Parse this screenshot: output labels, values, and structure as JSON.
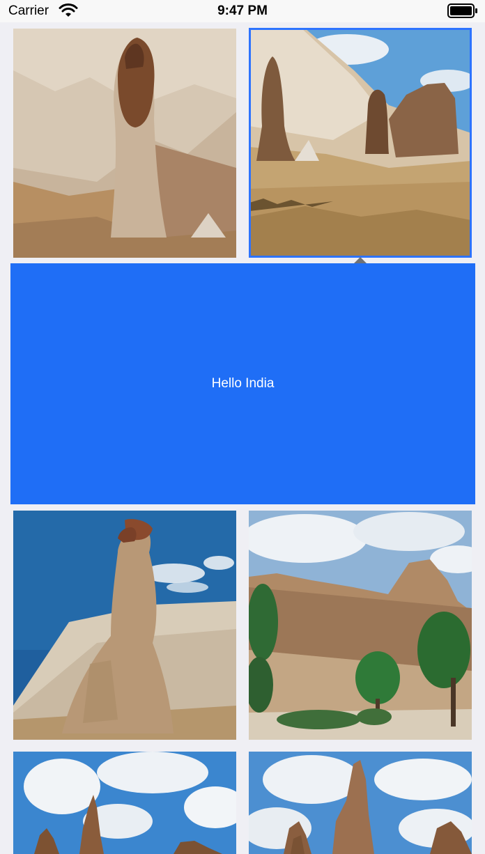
{
  "status_bar": {
    "carrier": "Carrier",
    "time": "9:47 PM",
    "wifi_icon": "wifi-icon",
    "battery_icon": "battery-icon"
  },
  "grid": {
    "selected_index": 1,
    "cells": [
      {
        "subject": "rock-pillar-hillside"
      },
      {
        "subject": "rock-formations-grassland"
      },
      {
        "subject": "fairy-chimney-blue-sky"
      },
      {
        "subject": "cliff-village-trees"
      },
      {
        "subject": "rock-spires-clouds"
      },
      {
        "subject": "fairy-chimney-clouds"
      }
    ]
  },
  "popover": {
    "text": "Hello India",
    "background": "#1f6ef6"
  },
  "colors": {
    "selection_outline": "#2d73ff",
    "page_background": "#efeff4"
  }
}
